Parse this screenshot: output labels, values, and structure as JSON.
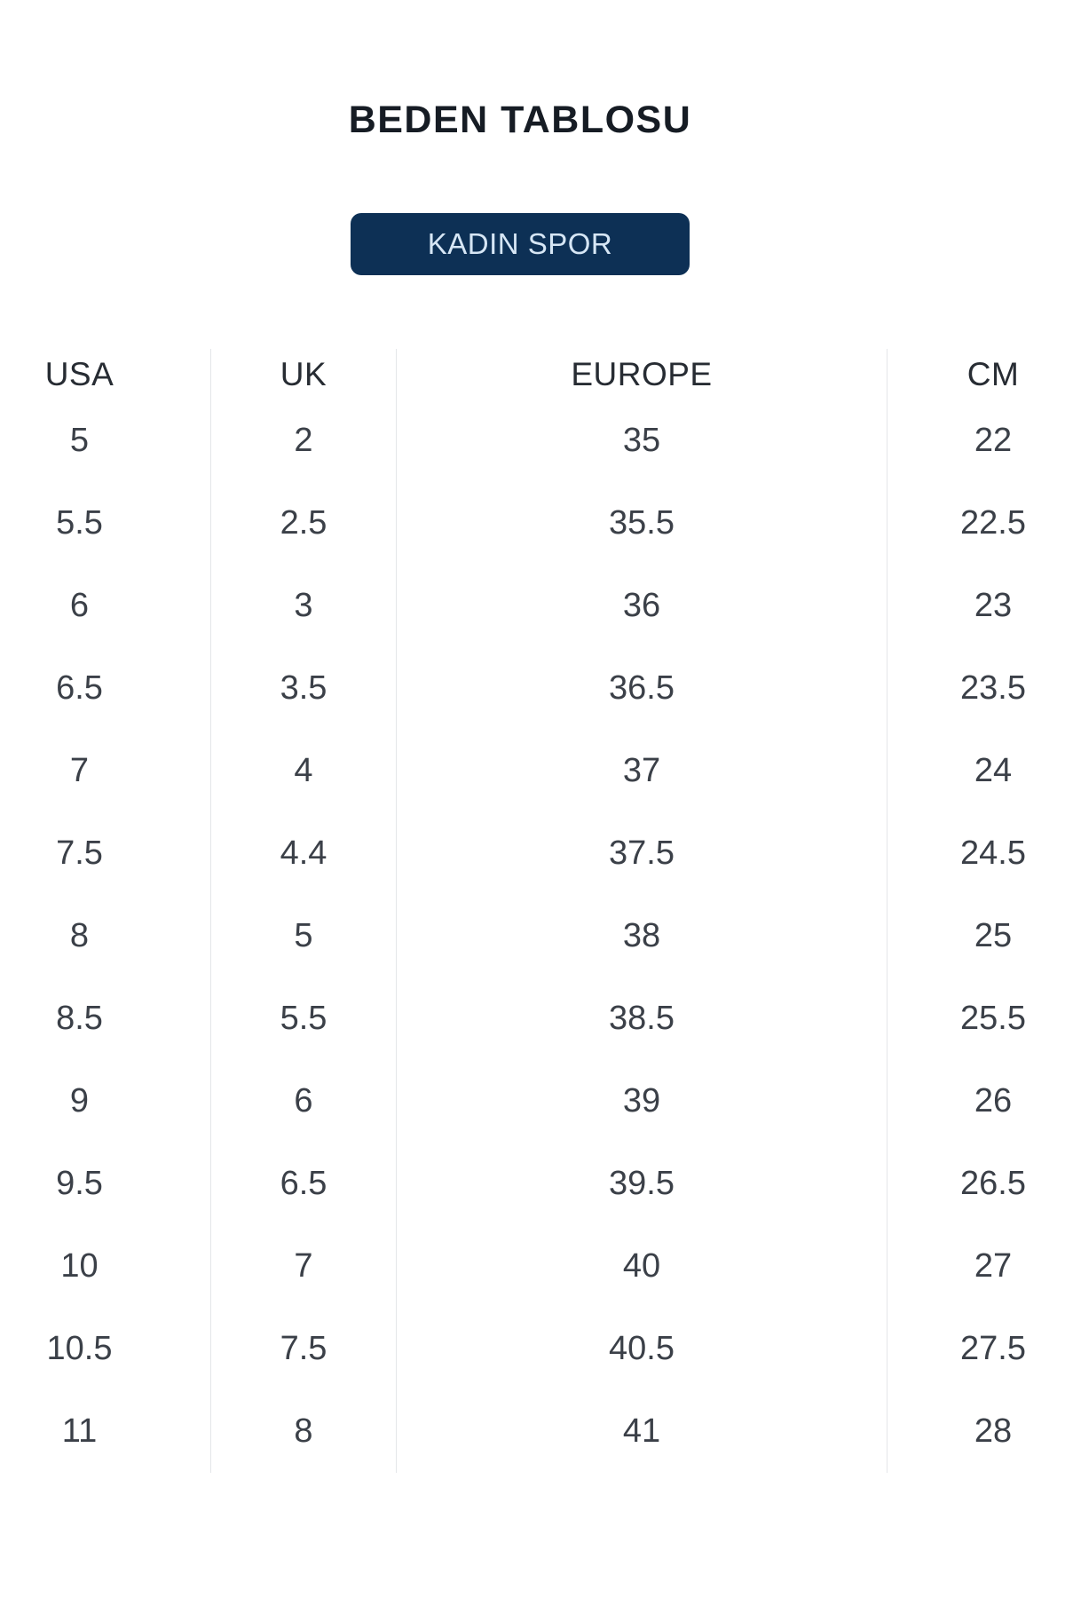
{
  "page": {
    "title": "BEDEN TABLOSU",
    "category_button_label": "KADIN SPOR"
  },
  "size_table": {
    "columns": [
      "USA",
      "UK",
      "EUROPE",
      "CM"
    ],
    "rows": [
      [
        "5",
        "2",
        "35",
        "22"
      ],
      [
        "5.5",
        "2.5",
        "35.5",
        "22.5"
      ],
      [
        "6",
        "3",
        "36",
        "23"
      ],
      [
        "6.5",
        "3.5",
        "36.5",
        "23.5"
      ],
      [
        "7",
        "4",
        "37",
        "24"
      ],
      [
        "7.5",
        "4.4",
        "37.5",
        "24.5"
      ],
      [
        "8",
        "5",
        "38",
        "25"
      ],
      [
        "8.5",
        "5.5",
        "38.5",
        "25.5"
      ],
      [
        "9",
        "6",
        "39",
        "26"
      ],
      [
        "9.5",
        "6.5",
        "39.5",
        "26.5"
      ],
      [
        "10",
        "7",
        "40",
        "27"
      ],
      [
        "10.5",
        "7.5",
        "40.5",
        "27.5"
      ],
      [
        "11",
        "8",
        "41",
        "28"
      ]
    ]
  },
  "colors": {
    "button_bg": "#0d3055",
    "button_text": "#d6e6f5",
    "title_text": "#161c24",
    "header_text": "#272c33",
    "value_text": "#3b4048",
    "divider": "#e4e6e9",
    "page_bg": "#ffffff"
  }
}
